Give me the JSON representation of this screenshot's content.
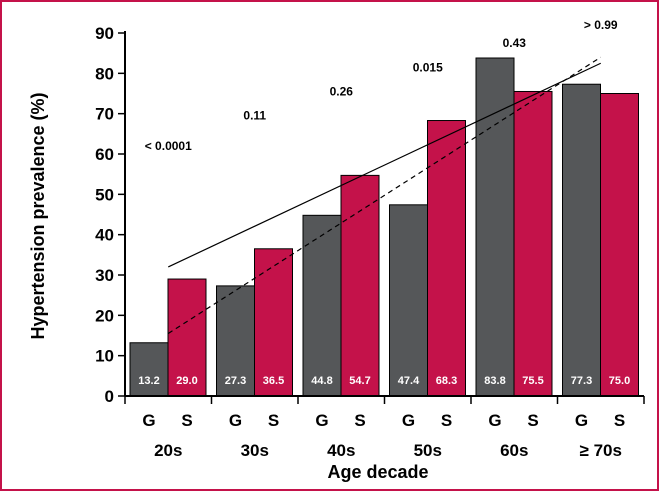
{
  "chart_data": {
    "type": "bar",
    "ylabel": "Hypertension prevalence (%)",
    "xlabel": "Age decade",
    "ylim": [
      0,
      90
    ],
    "yticks": [
      0,
      10,
      20,
      30,
      40,
      50,
      60,
      70,
      80,
      90
    ],
    "groups": [
      "20s",
      "30s",
      "40s",
      "50s",
      "60s",
      "≥ 70s"
    ],
    "bar_labels": [
      "G",
      "S"
    ],
    "series": [
      {
        "name": "G",
        "color": "#555759",
        "values": [
          13.2,
          27.3,
          44.8,
          47.4,
          83.8,
          77.3
        ],
        "value_labels": [
          "13.2",
          "27.3",
          "44.8",
          "47.4",
          "83.8",
          "77.3"
        ]
      },
      {
        "name": "S",
        "color": "#c4124a",
        "values": [
          29.0,
          36.5,
          54.7,
          68.3,
          75.5,
          75.0
        ],
        "value_labels": [
          "29.0",
          "36.5",
          "54.7",
          "68.3",
          "75.5",
          "75.0"
        ]
      }
    ],
    "p_values": [
      {
        "text": "< 0.0001",
        "group": 0,
        "y": 61
      },
      {
        "text": "0.11",
        "group": 1,
        "y": 68.5
      },
      {
        "text": "0.26",
        "group": 2,
        "y": 74.5
      },
      {
        "text": "0.015",
        "group": 3,
        "y": 80.5
      },
      {
        "text": "0.43",
        "group": 4,
        "y": 86.5
      },
      {
        "text": "> 0.99",
        "group": 5,
        "y": 91
      }
    ],
    "trendlines": [
      {
        "series": "S",
        "style": "solid",
        "start": [
          0,
          32
        ],
        "end": [
          5,
          82.5
        ]
      },
      {
        "series": "G",
        "style": "dashed",
        "start": [
          0,
          15.5
        ],
        "end": [
          5,
          84
        ]
      }
    ],
    "grid": false,
    "legend": "none"
  }
}
